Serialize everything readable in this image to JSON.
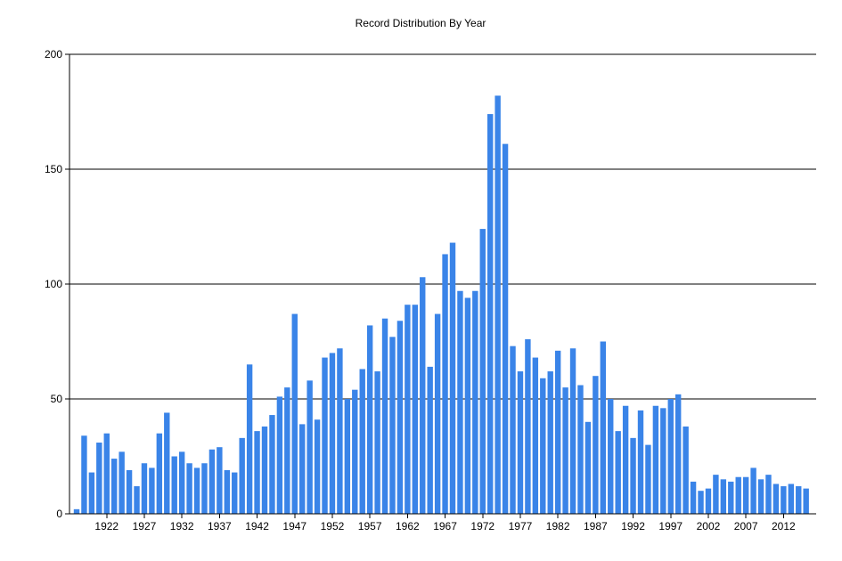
{
  "chart_data": {
    "type": "bar",
    "title": "Record Distribution By Year",
    "xlabel": "",
    "ylabel": "",
    "ylim": [
      0,
      200
    ],
    "yticks": [
      0,
      50,
      100,
      150,
      200
    ],
    "xtick_labels": [
      "1922",
      "1927",
      "1932",
      "1937",
      "1942",
      "1947",
      "1952",
      "1957",
      "1962",
      "1967",
      "1972",
      "1977",
      "1982",
      "1987",
      "1992",
      "1997",
      "2002",
      "2007",
      "2012"
    ],
    "grid": "horizontal",
    "bar_color": "#3a84e8",
    "x": [
      1918,
      1919,
      1920,
      1921,
      1922,
      1923,
      1924,
      1925,
      1926,
      1927,
      1928,
      1929,
      1930,
      1931,
      1932,
      1933,
      1934,
      1935,
      1936,
      1937,
      1938,
      1939,
      1940,
      1941,
      1942,
      1943,
      1944,
      1945,
      1946,
      1947,
      1948,
      1949,
      1950,
      1951,
      1952,
      1953,
      1954,
      1955,
      1956,
      1957,
      1958,
      1959,
      1960,
      1961,
      1962,
      1963,
      1964,
      1965,
      1966,
      1967,
      1968,
      1969,
      1970,
      1971,
      1972,
      1973,
      1974,
      1975,
      1976,
      1977,
      1978,
      1979,
      1980,
      1981,
      1982,
      1983,
      1984,
      1985,
      1986,
      1987,
      1988,
      1989,
      1990,
      1991,
      1992,
      1993,
      1994,
      1995,
      1996,
      1997,
      1998,
      1999,
      2000,
      2001,
      2002,
      2003,
      2004,
      2005,
      2006,
      2007,
      2008,
      2009,
      2010,
      2011,
      2012,
      2013,
      2014,
      2015
    ],
    "values": [
      2,
      34,
      18,
      31,
      35,
      24,
      27,
      19,
      12,
      22,
      20,
      35,
      44,
      25,
      27,
      22,
      20,
      22,
      28,
      29,
      19,
      18,
      33,
      65,
      36,
      38,
      43,
      51,
      55,
      87,
      39,
      58,
      41,
      68,
      70,
      72,
      50,
      54,
      63,
      82,
      62,
      85,
      77,
      84,
      91,
      91,
      103,
      64,
      87,
      113,
      118,
      97,
      94,
      97,
      124,
      174,
      182,
      161,
      73,
      62,
      76,
      68,
      59,
      62,
      71,
      55,
      72,
      56,
      40,
      60,
      75,
      50,
      36,
      47,
      33,
      45,
      30,
      47,
      46,
      50,
      52,
      38,
      14,
      10,
      11,
      17,
      15,
      14,
      16,
      16,
      20,
      15,
      17,
      13,
      12,
      13,
      12,
      11
    ]
  }
}
